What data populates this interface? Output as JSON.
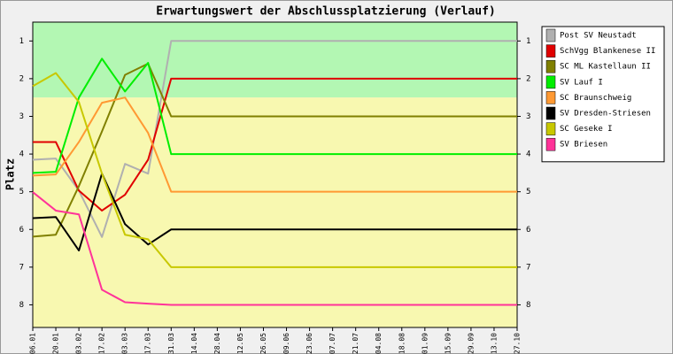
{
  "chart_data": {
    "type": "line",
    "title": "Erwartungswert der Abschlussplatzierung (Verlauf)",
    "y_label": "Platz",
    "categories": [
      "06.01",
      "20.01",
      "03.02",
      "17.02",
      "03.03",
      "17.03",
      "31.03",
      "14.04",
      "28.04",
      "12.05",
      "26.05",
      "09.06",
      "23.06",
      "07.07",
      "21.07",
      "04.08",
      "18.08",
      "01.09",
      "15.09",
      "29.09",
      "13.10",
      "27.10"
    ],
    "ylim": [
      0.5,
      8.6
    ],
    "y_inverted": true,
    "yticks": [
      1,
      2,
      3,
      4,
      5,
      6,
      7,
      8
    ],
    "bands": [
      {
        "from": 0.5,
        "to": 2.5,
        "color": "#b3f7b3"
      },
      {
        "from": 2.5,
        "to": 8.6,
        "color": "#f8f8b0"
      }
    ],
    "legend": "right",
    "series": [
      {
        "name": "Post SV Neustadt",
        "color": "#b0b0b0",
        "values": [
          4.15,
          4.12,
          4.97,
          6.2,
          4.26,
          4.52,
          1,
          1,
          1,
          1,
          1,
          1,
          1,
          1,
          1,
          1,
          1,
          1,
          1,
          1,
          1,
          1
        ]
      },
      {
        "name": "SchVgg Blankenese II",
        "color": "#e00000",
        "values": [
          3.68,
          3.68,
          4.97,
          5.5,
          5.08,
          4.15,
          2,
          2,
          2,
          2,
          2,
          2,
          2,
          2,
          2,
          2,
          2,
          2,
          2,
          2,
          2,
          2
        ]
      },
      {
        "name": "SC ML Kastellaun II",
        "color": "#808000",
        "values": [
          6.19,
          6.14,
          4.85,
          3.4,
          1.9,
          1.6,
          3,
          3,
          3,
          3,
          3,
          3,
          3,
          3,
          3,
          3,
          3,
          3,
          3,
          3,
          3,
          3
        ]
      },
      {
        "name": "SV Lauf I",
        "color": "#00ee00",
        "values": [
          4.5,
          4.47,
          2.5,
          1.47,
          2.34,
          1.58,
          4,
          4,
          4,
          4,
          4,
          4,
          4,
          4,
          4,
          4,
          4,
          4,
          4,
          4,
          4,
          4
        ]
      },
      {
        "name": "SC Braunschweig",
        "color": "#ff9933",
        "values": [
          4.57,
          4.54,
          3.68,
          2.64,
          2.5,
          3.44,
          5,
          5,
          5,
          5,
          5,
          5,
          5,
          5,
          5,
          5,
          5,
          5,
          5,
          5,
          5,
          5
        ]
      },
      {
        "name": "SV Dresden-Striesen",
        "color": "#000000",
        "values": [
          5.7,
          5.67,
          6.56,
          4.52,
          5.86,
          6.4,
          6,
          6,
          6,
          6,
          6,
          6,
          6,
          6,
          6,
          6,
          6,
          6,
          6,
          6,
          6,
          6
        ]
      },
      {
        "name": "SC Geseke I",
        "color": "#c8c800",
        "values": [
          2.2,
          1.85,
          2.62,
          4.52,
          6.14,
          6.26,
          7,
          7,
          7,
          7,
          7,
          7,
          7,
          7,
          7,
          7,
          7,
          7,
          7,
          7,
          7,
          7
        ]
      },
      {
        "name": "SV Briesen",
        "color": "#ff3399",
        "values": [
          5.01,
          5.5,
          5.6,
          7.6,
          7.93,
          7.97,
          8,
          8,
          8,
          8,
          8,
          8,
          8,
          8,
          8,
          8,
          8,
          8,
          8,
          8,
          8,
          8
        ]
      }
    ]
  }
}
